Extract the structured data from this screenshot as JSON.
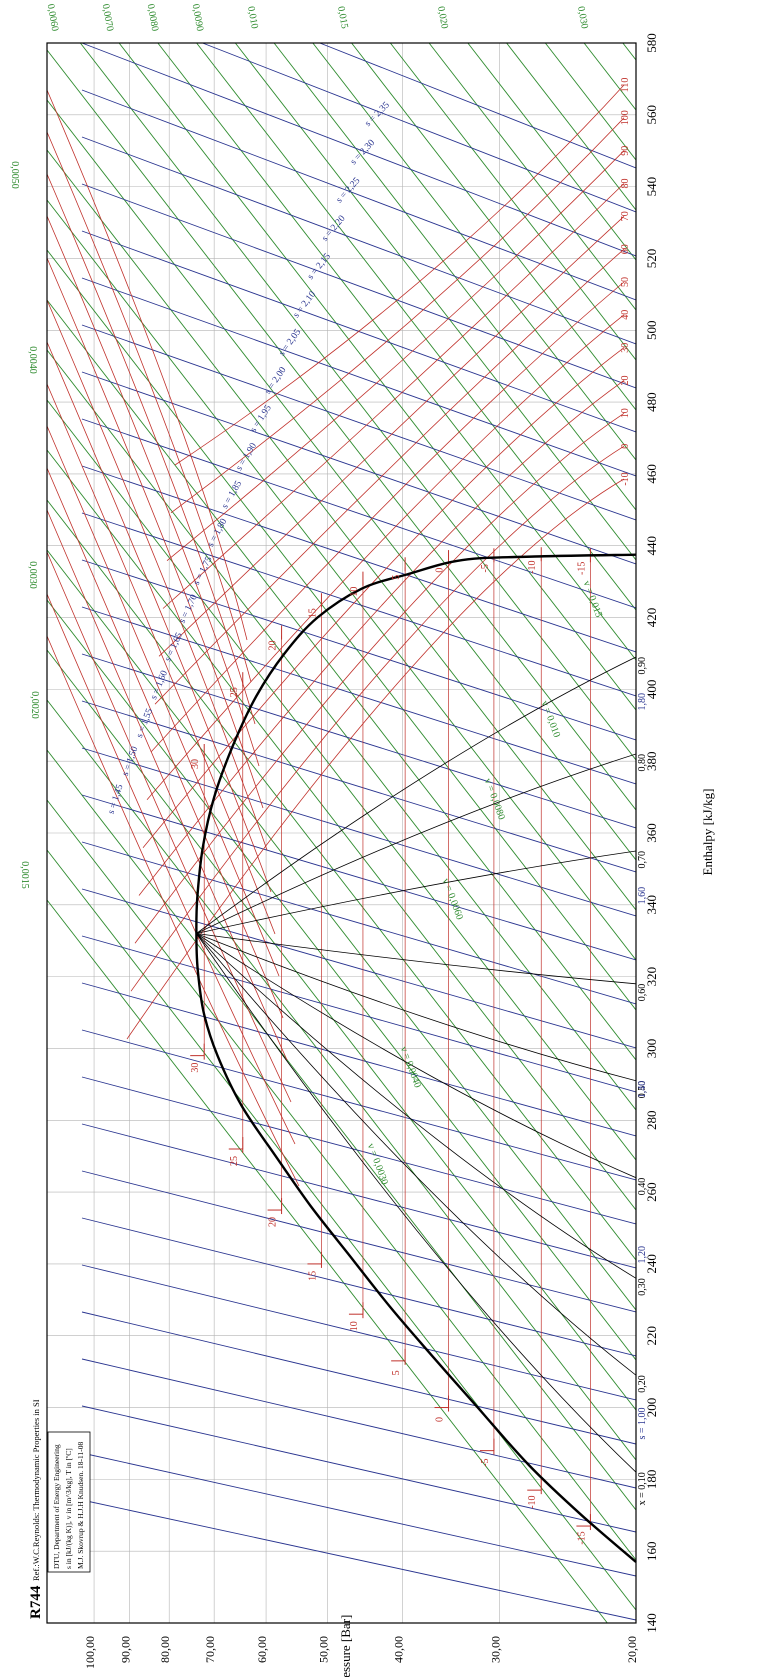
{
  "chart_data": {
    "type": "line",
    "title": "R744",
    "subtitle": "Ref.:W.C.Reynolds: Thermodynamic Properties in SI",
    "info_lines": [
      "DTU, Department of Energy Engineering",
      "s in [kJ/(kg K)], v in [m^3/kg], T in [ºC]",
      "M.J. Skovrup & H.J.H Knudsen. 18-11-08"
    ],
    "xlabel": "Enthalpy [kJ/kg]",
    "ylabel": "Pressure [Bar]",
    "xlim": [
      140,
      580
    ],
    "ylim": [
      20,
      115
    ],
    "y_scale": "log",
    "grid": true,
    "x_ticks": [
      140,
      160,
      180,
      200,
      220,
      240,
      260,
      280,
      300,
      320,
      340,
      360,
      380,
      400,
      420,
      440,
      460,
      480,
      500,
      520,
      540,
      560,
      580
    ],
    "y_ticks": [
      20,
      30,
      40,
      50,
      60,
      70,
      80,
      90,
      100
    ],
    "y_tick_labels": [
      "20,00",
      "30,00",
      "40,00",
      "50,00",
      "60,00",
      "70,00",
      "80,00",
      "90,00",
      "100,00"
    ],
    "colors": {
      "isotherm": "#c0312b",
      "isentrope": "#2a3590",
      "isochore": "#2e8b2e",
      "quality": "#000000",
      "saturation": "#000000",
      "grid": "#b4b4b4"
    },
    "saturation_dome": {
      "critical_point": [
        332,
        73.8
      ],
      "liquid": [
        [
          157,
          20.0
        ],
        [
          170,
          23.5
        ],
        [
          184,
          27.5
        ],
        [
          200,
          32.0
        ],
        [
          214,
          36.5
        ],
        [
          228,
          41.5
        ],
        [
          242,
          46.7
        ],
        [
          256,
          52.5
        ],
        [
          270,
          58.3
        ],
        [
          284,
          64.5
        ],
        [
          298,
          69.3
        ],
        [
          310,
          72.2
        ],
        [
          322,
          73.5
        ],
        [
          332,
          73.8
        ]
      ],
      "vapor": [
        [
          332,
          73.8
        ],
        [
          342,
          73.6
        ],
        [
          356,
          72.4
        ],
        [
          370,
          70.0
        ],
        [
          384,
          66.3
        ],
        [
          398,
          61.8
        ],
        [
          410,
          56.8
        ],
        [
          420,
          51.5
        ],
        [
          428,
          45.2
        ],
        [
          432,
          39.5
        ],
        [
          436,
          33.5
        ],
        [
          437,
          27.0
        ],
        [
          437.5,
          20.0
        ]
      ]
    },
    "isotherms": [
      {
        "label": "-15",
        "liquid_h": 167,
        "vapor_h": 436.5,
        "p": 22.9
      },
      {
        "label": "-10",
        "liquid_h": 177,
        "vapor_h": 436.8,
        "p": 26.5
      },
      {
        "label": "-5",
        "liquid_h": 188,
        "vapor_h": 436.5,
        "p": 30.5
      },
      {
        "label": "0",
        "liquid_h": 200,
        "vapor_h": 436.0,
        "p": 34.9
      },
      {
        "label": "5",
        "liquid_h": 213,
        "vapor_h": 434.0,
        "p": 39.7
      },
      {
        "label": "10",
        "liquid_h": 226,
        "vapor_h": 430.0,
        "p": 45.0
      },
      {
        "label": "15",
        "liquid_h": 240,
        "vapor_h": 424.0,
        "p": 50.9
      },
      {
        "label": "20",
        "liquid_h": 255,
        "vapor_h": 415.0,
        "p": 57.3
      },
      {
        "label": "25",
        "liquid_h": 272,
        "vapor_h": 402.0,
        "p": 64.3
      },
      {
        "label": "30",
        "liquid_h": 298,
        "vapor_h": 382.0,
        "p": 72.1
      }
    ],
    "superheat_isotherm_labels": [
      "-10",
      "0",
      "10",
      "20",
      "30",
      "40",
      "50",
      "60",
      "70",
      "80",
      "90",
      "100",
      "110"
    ],
    "quality_lines": [
      {
        "label": "x = 0,10",
        "h": 182
      },
      {
        "label": "0,20",
        "h": 209
      },
      {
        "label": "0,30",
        "h": 236
      },
      {
        "label": "0,40",
        "h": 264
      },
      {
        "label": "0,50",
        "h": 291
      },
      {
        "label": "0,60",
        "h": 318
      },
      {
        "label": "0,70",
        "h": 355
      },
      {
        "label": "0,80",
        "h": 382
      },
      {
        "label": "0,90",
        "h": 409
      }
    ],
    "isentropes": {
      "bottom_labels": [
        {
          "label": "s = 1,00",
          "h": 200
        },
        {
          "label": "1,20",
          "h": 245
        },
        {
          "label": "1,40",
          "h": 291
        },
        {
          "label": "1,60",
          "h": 345
        },
        {
          "label": "1,80",
          "h": 399
        }
      ],
      "inline_labels": [
        "s = 1,45",
        "s = 1,50",
        "s = 1,55",
        "s = 1,60",
        "s = 1,65",
        "s = 1,70",
        "s = 1,75",
        "s = 1,80",
        "s = 1,85",
        "s = 1,90",
        "s = 1,95",
        "s = 2,00",
        "s = 2,05",
        "s = 2,10",
        "s = 2,15",
        "s = 2,20",
        "s = 2,25",
        "s = 2,30",
        "s = 2,35"
      ]
    },
    "isochores": {
      "edge_labels": [
        "0,0015",
        "0,0020",
        "0,0030",
        "0,0040",
        "0,0050",
        "0,0060",
        "0,0070",
        "0,0080",
        "0,0090",
        "0,010",
        "0,015",
        "0,020",
        "0,030"
      ],
      "inline_labels": [
        "v = 0,0030",
        "v = 0,0040",
        "v = 0,0060",
        "v = 0,0080",
        "v = 0,010",
        "v = 0,015"
      ]
    }
  }
}
